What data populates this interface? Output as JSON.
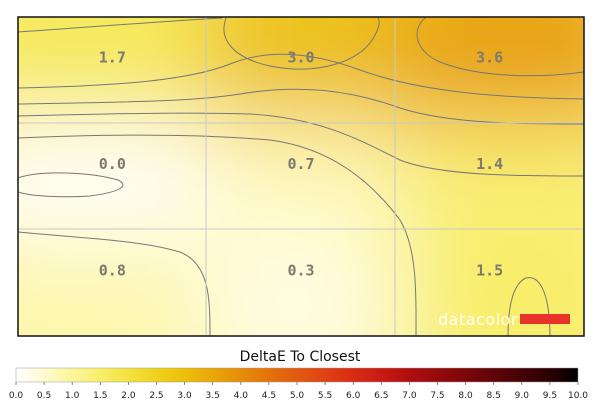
{
  "chart_data": {
    "type": "heatmap",
    "title": "",
    "rows": 3,
    "cols": 3,
    "cells": [
      [
        1.7,
        3.0,
        3.6
      ],
      [
        0.0,
        0.7,
        1.4
      ],
      [
        0.8,
        0.3,
        1.5
      ]
    ],
    "cell_labels": [
      [
        "1.7",
        "3.0",
        "3.6"
      ],
      [
        "0.0",
        "0.7",
        "1.4"
      ],
      [
        "0.8",
        "0.3",
        "1.5"
      ]
    ],
    "contours": true,
    "grid": true,
    "legend": {
      "title": "DeltaE To Closest",
      "range": [
        0.0,
        10.0
      ],
      "ticks": [
        "0.0",
        "0.5",
        "1.0",
        "1.5",
        "2.0",
        "2.5",
        "3.0",
        "3.5",
        "4.0",
        "4.5",
        "5.0",
        "5.5",
        "6.0",
        "6.5",
        "7.0",
        "7.5",
        "8.0",
        "8.5",
        "9.0",
        "9.5",
        "10.0"
      ],
      "colors": [
        "#ffffff",
        "#fffbd0",
        "#fcf59a",
        "#f8ee6a",
        "#f3e23e",
        "#efd21c",
        "#ecbf0a",
        "#e9a60a",
        "#e68c0a",
        "#e4720a",
        "#e25a10",
        "#df4214",
        "#d82c14",
        "#c81a12",
        "#b00e10",
        "#960a0c",
        "#7c060a",
        "#600408",
        "#460206",
        "#2a0104",
        "#000000"
      ]
    }
  },
  "watermark": {
    "text": "datacolor",
    "bar_color": "#e8322c"
  }
}
